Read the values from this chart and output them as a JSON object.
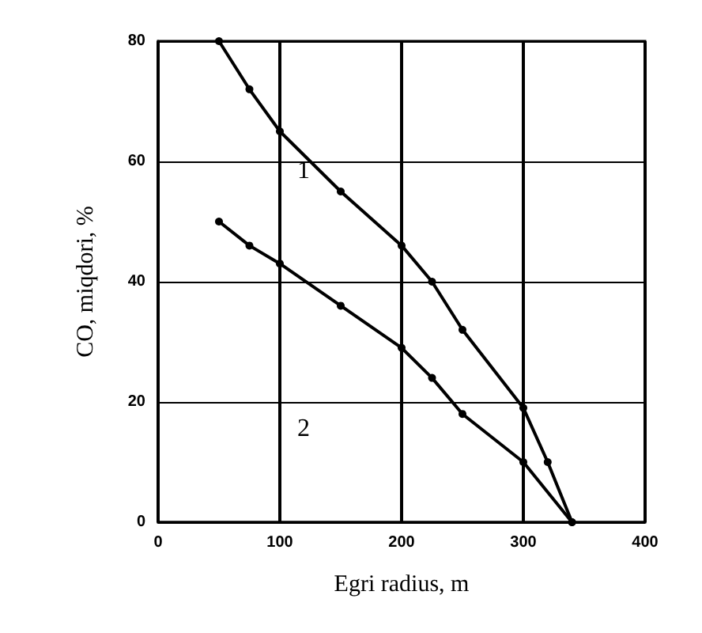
{
  "chart_data": {
    "type": "line",
    "xlabel": "Egri radius, m",
    "ylabel": "CO, miqdori, %",
    "xlim": [
      0,
      400
    ],
    "ylim": [
      0,
      80
    ],
    "xticks": [
      0,
      100,
      200,
      300,
      400
    ],
    "yticks": [
      0,
      20,
      40,
      60,
      80
    ],
    "grid": true,
    "marker": "circle",
    "line_style": "solid",
    "series": [
      {
        "color": "#000000",
        "x": [
          50,
          75,
          100,
          150,
          200,
          225,
          250,
          300,
          320,
          340
        ],
        "values": [
          80,
          72,
          65,
          55,
          46,
          40,
          32,
          19,
          10,
          0
        ]
      },
      {
        "color": "#000000",
        "x": [
          50,
          75,
          100,
          150,
          200,
          225,
          250,
          300,
          340
        ],
        "values": [
          50,
          46,
          43,
          36,
          29,
          24,
          18,
          10,
          0
        ]
      }
    ],
    "annotations": [
      "1",
      "2"
    ]
  }
}
